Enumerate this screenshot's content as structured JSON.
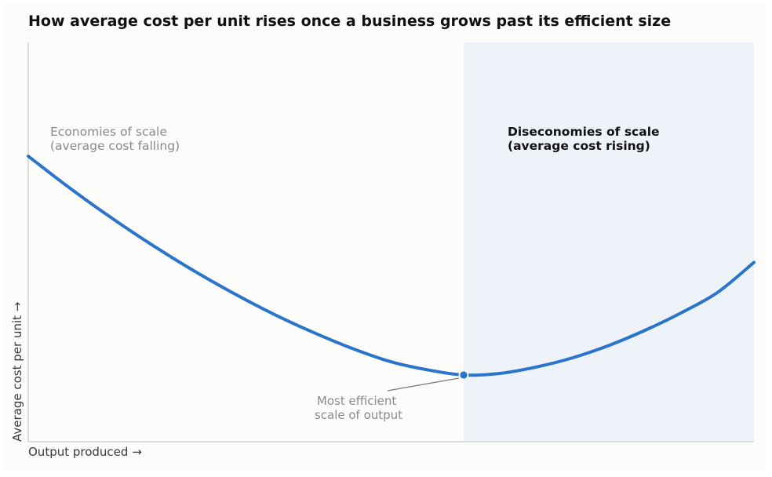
{
  "chart_data": {
    "type": "line",
    "title": "How average cost per unit rises once a business grows past its efficient size",
    "xlabel": "Output produced  →",
    "ylabel": "Average cost per unit  →",
    "xlim": [
      0,
      1
    ],
    "ylim": [
      0,
      1
    ],
    "grid": false,
    "series": [
      {
        "values": [
          [
            0.0,
            0.715
          ],
          [
            0.05,
            0.645
          ],
          [
            0.1,
            0.579
          ],
          [
            0.15,
            0.517
          ],
          [
            0.2,
            0.459
          ],
          [
            0.25,
            0.405
          ],
          [
            0.3,
            0.355
          ],
          [
            0.35,
            0.309
          ],
          [
            0.4,
            0.268
          ],
          [
            0.45,
            0.231
          ],
          [
            0.5,
            0.2
          ],
          [
            0.55,
            0.18
          ],
          [
            0.6,
            0.167
          ],
          [
            0.65,
            0.171
          ],
          [
            0.7,
            0.187
          ],
          [
            0.75,
            0.21
          ],
          [
            0.8,
            0.241
          ],
          [
            0.85,
            0.279
          ],
          [
            0.9,
            0.323
          ],
          [
            0.95,
            0.374
          ],
          [
            1.0,
            0.449
          ]
        ],
        "color": "#2b74cc"
      }
    ],
    "minimum_point": {
      "x": 0.6,
      "y": 0.167,
      "label_lines": [
        "Most efficient",
        "scale of output"
      ]
    },
    "shaded_region": {
      "x_start": 0.6,
      "x_end": 1.0,
      "color": "#eef3f9",
      "label_lines": [
        "Diseconomies of scale",
        "(average cost rising)"
      ]
    },
    "left_region": {
      "label_lines": [
        "Economies of scale",
        "(average cost falling)"
      ]
    },
    "colors": {
      "curve": "#2b74cc",
      "shade": "#eef3f9",
      "axis": "#bbbbbb",
      "leader": "#777777"
    }
  }
}
